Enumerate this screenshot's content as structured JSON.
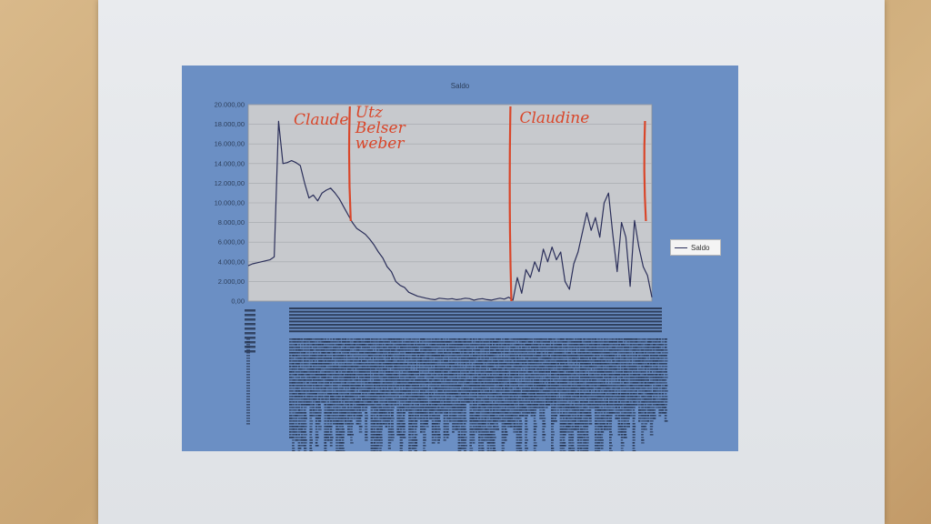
{
  "chart_data": {
    "type": "line",
    "title": "Saldo",
    "ylim": [
      0,
      20000
    ],
    "y_ticks": [
      "0,00",
      "2.000,00",
      "4.000,00",
      "6.000,00",
      "8.000,00",
      "10.000,00",
      "12.000,00",
      "14.000,00",
      "16.000,00",
      "18.000,00",
      "20.000,00"
    ],
    "grid": true,
    "legend_position": "right",
    "series": [
      {
        "name": "Saldo",
        "color": "#2b2f5a",
        "values": [
          3600,
          3800,
          3900,
          4000,
          4100,
          4200,
          4500,
          18300,
          14000,
          14100,
          14300,
          14100,
          13800,
          12000,
          10500,
          10800,
          10200,
          11000,
          11300,
          11500,
          11000,
          10400,
          9600,
          8800,
          8000,
          7400,
          7100,
          6800,
          6300,
          5700,
          5000,
          4400,
          3500,
          3000,
          2000,
          1600,
          1400,
          900,
          700,
          500,
          400,
          300,
          200,
          150,
          300,
          250,
          200,
          250,
          150,
          200,
          300,
          250,
          100,
          200,
          250,
          150,
          100,
          200,
          300,
          200,
          400,
          100,
          2400,
          800,
          3200,
          2400,
          4000,
          3000,
          5300,
          4000,
          5500,
          4200,
          5000,
          2000,
          1200,
          3800,
          5000,
          7000,
          9000,
          7200,
          8500,
          6500,
          10000,
          11000,
          6800,
          3000,
          8000,
          6500,
          1500,
          8200,
          5500,
          3500,
          2600,
          400
        ]
      }
    ],
    "annotations": [
      {
        "label": "Claude",
        "x_index": 0
      },
      {
        "label": "Utz Belser weber",
        "x_index": 23
      },
      {
        "label": "Claudine",
        "x_index": 60
      },
      {
        "label": "",
        "x_index": 91
      }
    ]
  }
}
